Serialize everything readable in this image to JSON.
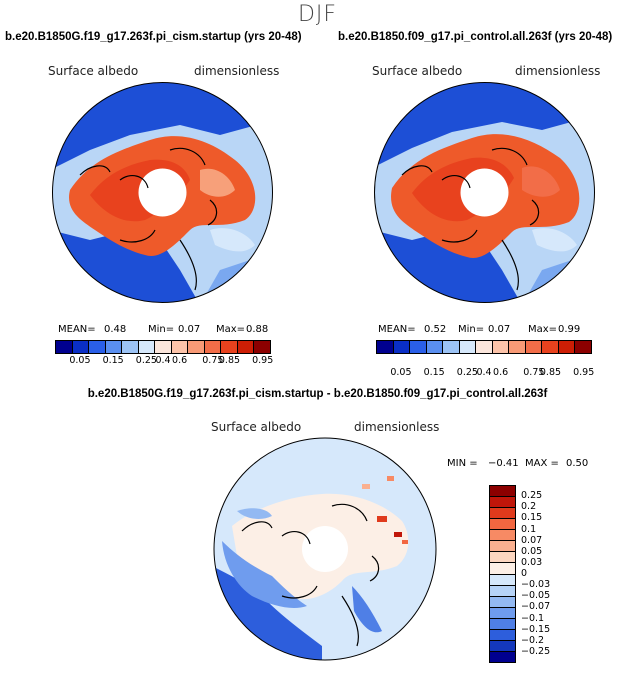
{
  "season": "DJF",
  "left_panel": {
    "title": "b.e20.B1850G.f19_g17.263f.pi_cism.startup (yrs 20-48)",
    "variable": "Surface albedo",
    "units": "dimensionless",
    "mean_label": "MEAN=",
    "mean": "0.48",
    "min_label": "Min=",
    "min": "0.07",
    "max_label": "Max=",
    "max": "0.88"
  },
  "right_panel": {
    "title": "b.e20.B1850.f09_g17.pi_control.all.263f (yrs 20-48)",
    "variable": "Surface albedo",
    "units": "dimensionless",
    "mean_label": "MEAN=",
    "mean": "0.52",
    "min_label": "Min=",
    "min": "0.07",
    "max_label": "Max=",
    "max": "0.99"
  },
  "diff_panel": {
    "title": "b.e20.B1850G.f19_g17.263f.pi_cism.startup - b.e20.B1850.f09_g17.pi_control.all.263f",
    "variable": "Surface albedo",
    "units": "dimensionless",
    "min_label": "MIN =",
    "min": "−0.41",
    "max_label": "MAX =",
    "max": "0.50"
  },
  "abs_colorbar": {
    "ticks": [
      "0.05",
      "0.15",
      "0.25",
      "0.4",
      "0.6",
      "0.75",
      "0.85",
      "0.95"
    ],
    "colors": [
      "#00008f",
      "#0a2fc6",
      "#2a5fe8",
      "#5a8ff0",
      "#9cc3f5",
      "#d6e8fb",
      "#fbe6dc",
      "#fcc3a9",
      "#f89a76",
      "#f26d48",
      "#e8421e",
      "#cd1e05",
      "#8c0000"
    ]
  },
  "diff_colorbar": {
    "ticks": [
      "0.25",
      "0.2",
      "0.15",
      "0.1",
      "0.07",
      "0.05",
      "0.03",
      "0",
      "−0.03",
      "−0.05",
      "−0.07",
      "−0.1",
      "−0.15",
      "−0.2",
      "−0.25"
    ],
    "colors": [
      "#8c0000",
      "#c0160a",
      "#e03a1c",
      "#f26640",
      "#f78a64",
      "#fab090",
      "#fcd6c0",
      "#fcefe6",
      "#d6e8fb",
      "#b6d3f7",
      "#93b9f2",
      "#6f9cee",
      "#4f7fe6",
      "#2d5edc",
      "#1438bd",
      "#00008f"
    ]
  }
}
